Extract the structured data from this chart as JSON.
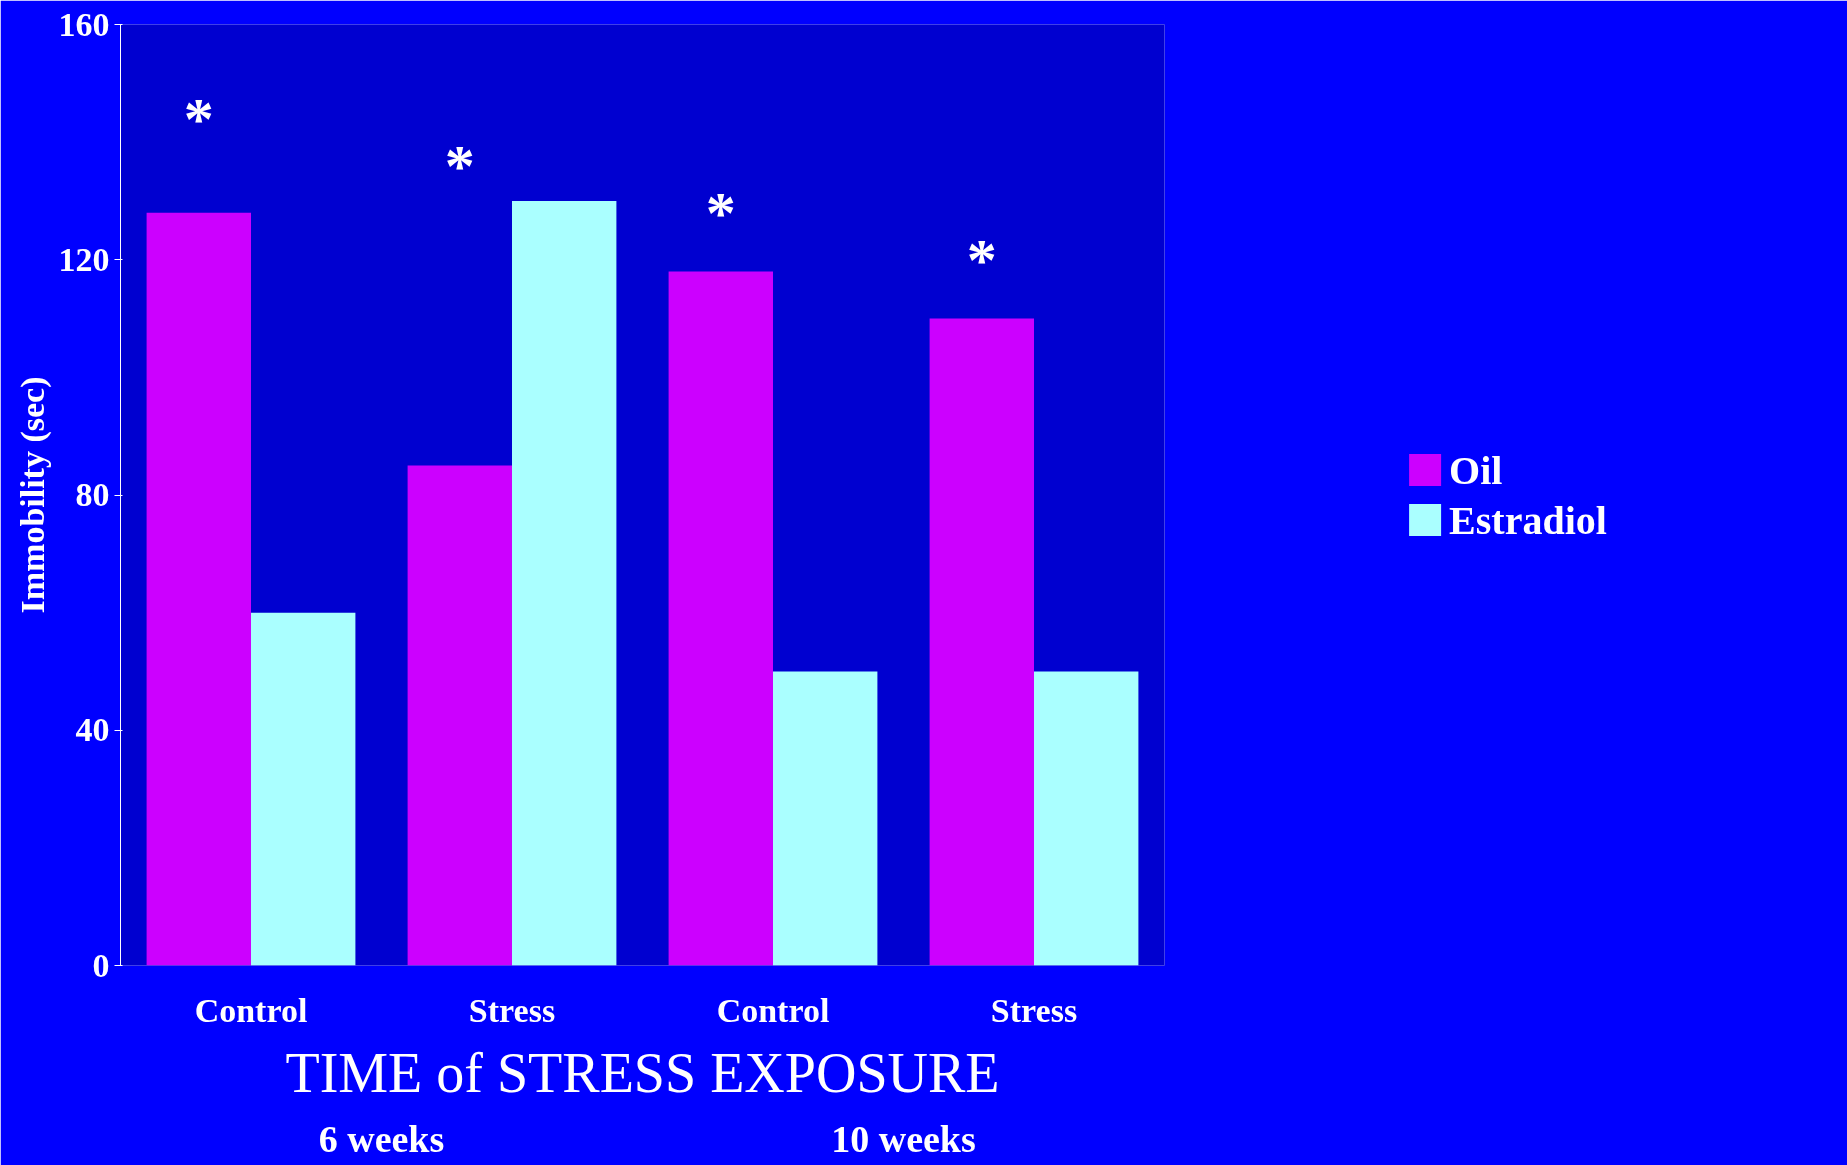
{
  "chart_data": {
    "type": "bar",
    "categories": [
      "Control",
      "Stress",
      "Control",
      "Stress"
    ],
    "series": [
      {
        "name": "Oil",
        "color": "#cc00ff",
        "values": [
          128,
          85,
          118,
          110
        ]
      },
      {
        "name": "Estradiol",
        "color": "#aaffff",
        "values": [
          60,
          130,
          50,
          50
        ]
      }
    ],
    "ylabel": "Immobility (sec)",
    "xlabel": "TIME of STRESS EXPOSURE",
    "ylim": [
      0,
      160
    ],
    "yticks": [
      0,
      40,
      80,
      120,
      160
    ],
    "annotations": [
      "*",
      "*",
      "*",
      "*",
      "6 weeks",
      "10 weeks"
    ],
    "grid": false,
    "legend": "right"
  }
}
